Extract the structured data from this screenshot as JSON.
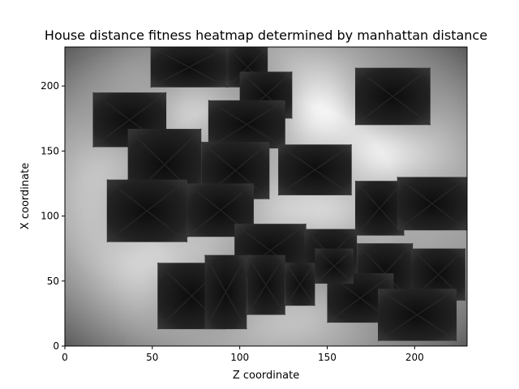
{
  "chart_data": {
    "type": "heatmap",
    "title": "House distance fitness heatmap determined by manhattan distance",
    "xlabel": "Z coordinate",
    "ylabel": "X coordinate",
    "xlim": [
      0,
      230
    ],
    "ylim": [
      0,
      230
    ],
    "xticks": [
      0,
      50,
      100,
      150,
      200
    ],
    "yticks": [
      0,
      50,
      100,
      150,
      200
    ],
    "colormap": "grayscale",
    "colors": {
      "dark": "#111111",
      "light": "#ffffff"
    },
    "houses": [
      {
        "z0": 49,
        "z1": 93,
        "x0": 199,
        "x1": 230
      },
      {
        "z0": 93,
        "z1": 116,
        "x0": 199,
        "x1": 230
      },
      {
        "z0": 100,
        "z1": 130,
        "x0": 175,
        "x1": 211
      },
      {
        "z0": 166,
        "z1": 209,
        "x0": 170,
        "x1": 214
      },
      {
        "z0": 16,
        "z1": 58,
        "x0": 153,
        "x1": 195
      },
      {
        "z0": 82,
        "z1": 126,
        "x0": 152,
        "x1": 189
      },
      {
        "z0": 36,
        "z1": 78,
        "x0": 112,
        "x1": 167
      },
      {
        "z0": 78,
        "z1": 117,
        "x0": 113,
        "x1": 157
      },
      {
        "z0": 122,
        "z1": 164,
        "x0": 116,
        "x1": 155
      },
      {
        "z0": 24,
        "z1": 70,
        "x0": 80,
        "x1": 128
      },
      {
        "z0": 70,
        "z1": 108,
        "x0": 84,
        "x1": 125
      },
      {
        "z0": 166,
        "z1": 194,
        "x0": 85,
        "x1": 127
      },
      {
        "z0": 190,
        "z1": 230,
        "x0": 89,
        "x1": 130
      },
      {
        "z0": 97,
        "z1": 138,
        "x0": 53,
        "x1": 94
      },
      {
        "z0": 137,
        "z1": 167,
        "x0": 49,
        "x1": 90
      },
      {
        "z0": 167,
        "z1": 199,
        "x0": 33,
        "x1": 79
      },
      {
        "z0": 198,
        "z1": 229,
        "x0": 35,
        "x1": 75
      },
      {
        "z0": 53,
        "z1": 92,
        "x0": 13,
        "x1": 64
      },
      {
        "z0": 80,
        "z1": 104,
        "x0": 13,
        "x1": 70
      },
      {
        "z0": 104,
        "z1": 126,
        "x0": 24,
        "x1": 70
      },
      {
        "z0": 126,
        "z1": 143,
        "x0": 31,
        "x1": 64
      },
      {
        "z0": 150,
        "z1": 188,
        "x0": 18,
        "x1": 56
      },
      {
        "z0": 179,
        "z1": 224,
        "x0": 4,
        "x1": 44
      },
      {
        "z0": 143,
        "z1": 165,
        "x0": 48,
        "x1": 75
      }
    ]
  }
}
